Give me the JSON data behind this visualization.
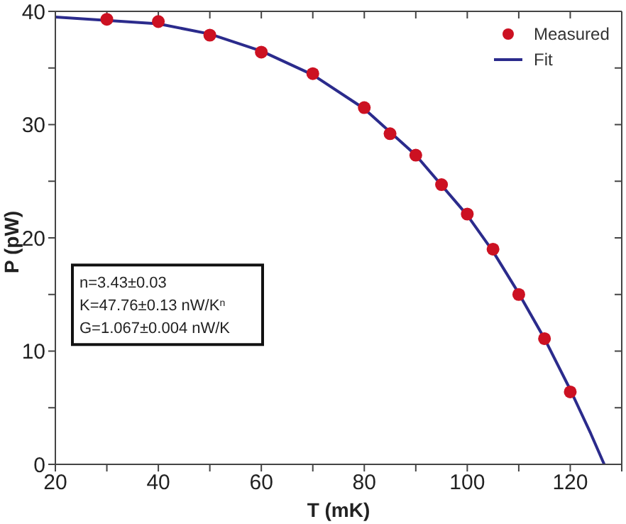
{
  "chart_data": {
    "type": "scatter",
    "xlabel": "T (mK)",
    "ylabel": "P (pW)",
    "xlim": [
      20,
      130
    ],
    "xticks": [
      20,
      {
        "value": 30,
        "label": null
      },
      40,
      {
        "value": 50,
        "label": null
      },
      60,
      {
        "value": 70,
        "label": null
      },
      80,
      {
        "value": 90,
        "label": null
      },
      100,
      {
        "value": 110,
        "label": null
      },
      120,
      {
        "value": 130,
        "label": null
      }
    ],
    "ylim": [
      0,
      40
    ],
    "yticks": [
      0,
      {
        "value": 5,
        "label": null
      },
      10,
      {
        "value": 15,
        "label": null
      },
      20,
      {
        "value": 25,
        "label": null
      },
      30,
      {
        "value": 35,
        "label": null
      },
      40
    ],
    "grid": false,
    "legend": "top right",
    "marker": "circle",
    "annotations": [
      "n=3.43±0.03\nK=47.76±0.13 nW/K$^{n}$\nG=1.067±0.004 nW/K"
    ],
    "series": [
      {
        "name": "Measured",
        "color": "#cc1122",
        "x": [
          30,
          40,
          50,
          60,
          70,
          80,
          85,
          90,
          95,
          100,
          105,
          110,
          115,
          120
        ],
        "values": [
          39.3,
          39.1,
          37.9,
          36.4,
          34.5,
          31.5,
          29.2,
          27.3,
          24.7,
          22.1,
          19.0,
          15.0,
          11.1,
          6.4
        ]
      },
      {
        "name": "Fit",
        "type": "line",
        "color": "#2b2b8c",
        "line_style": "solid",
        "marker": "none",
        "x": [
          20,
          40,
          50,
          60,
          70,
          80,
          90,
          100,
          105,
          110,
          115,
          120,
          124,
          126.6
        ],
        "values": [
          39.5,
          38.9,
          38.0,
          36.5,
          34.4,
          31.4,
          27.3,
          22.0,
          18.8,
          15.1,
          11.1,
          6.6,
          2.7,
          0
        ]
      }
    ]
  }
}
